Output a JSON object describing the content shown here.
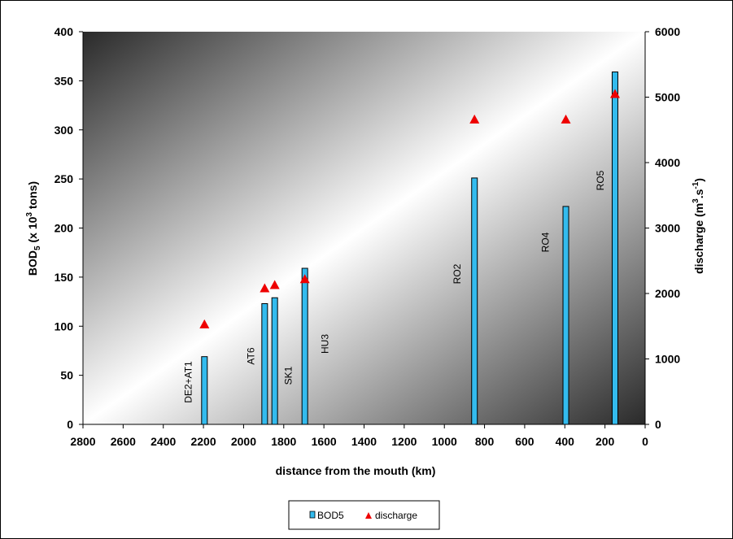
{
  "chart_data": {
    "type": "bar",
    "xlabel": "distance from the mouth (km)",
    "xlim": [
      2800,
      0
    ],
    "x_ticks": [
      2800,
      2600,
      2400,
      2200,
      2000,
      1800,
      1600,
      1400,
      1200,
      1000,
      800,
      600,
      400,
      200,
      0
    ],
    "ylabel_left": {
      "prefix": "BOD",
      "sub": "5",
      "middle": " (x 10",
      "sup": "3",
      "suffix": " tons)"
    },
    "ylabel_right": {
      "prefix": "discharge (m",
      "sup1": "3",
      "middle": ".s",
      "sup2": "-1",
      "suffix": ")"
    },
    "ylim_left": [
      0,
      400
    ],
    "y_ticks_left": [
      0,
      50,
      100,
      150,
      200,
      250,
      300,
      350,
      400
    ],
    "ylim_right": [
      0,
      6000
    ],
    "y_ticks_right": [
      0,
      1000,
      2000,
      3000,
      4000,
      5000,
      6000
    ],
    "grid": false,
    "legend_position": "bottom",
    "colors": {
      "bar_fill": "#33bbee",
      "bar_stroke": "#000000",
      "marker": "#ee0000"
    },
    "series": [
      {
        "name": "BOD5",
        "axis": "left",
        "kind": "bar",
        "points": [
          {
            "label": "DE2+AT1",
            "x": 2195,
            "y": 69
          },
          {
            "label": "AT6",
            "x": 1895,
            "y": 123
          },
          {
            "label": "SK1",
            "x": 1845,
            "y": 129
          },
          {
            "label": "HU3",
            "x": 1695,
            "y": 159
          },
          {
            "label": "RO2",
            "x": 850,
            "y": 251
          },
          {
            "label": "RO4",
            "x": 395,
            "y": 222
          },
          {
            "label": "RO5",
            "x": 150,
            "y": 359
          }
        ]
      },
      {
        "name": "discharge",
        "axis": "right",
        "kind": "marker",
        "marker": "triangle",
        "points": [
          {
            "x": 2195,
            "y": 1530
          },
          {
            "x": 1895,
            "y": 2080
          },
          {
            "x": 1845,
            "y": 2130
          },
          {
            "x": 1695,
            "y": 2220
          },
          {
            "x": 850,
            "y": 4660
          },
          {
            "x": 395,
            "y": 4660
          },
          {
            "x": 150,
            "y": 5050
          }
        ]
      }
    ]
  }
}
